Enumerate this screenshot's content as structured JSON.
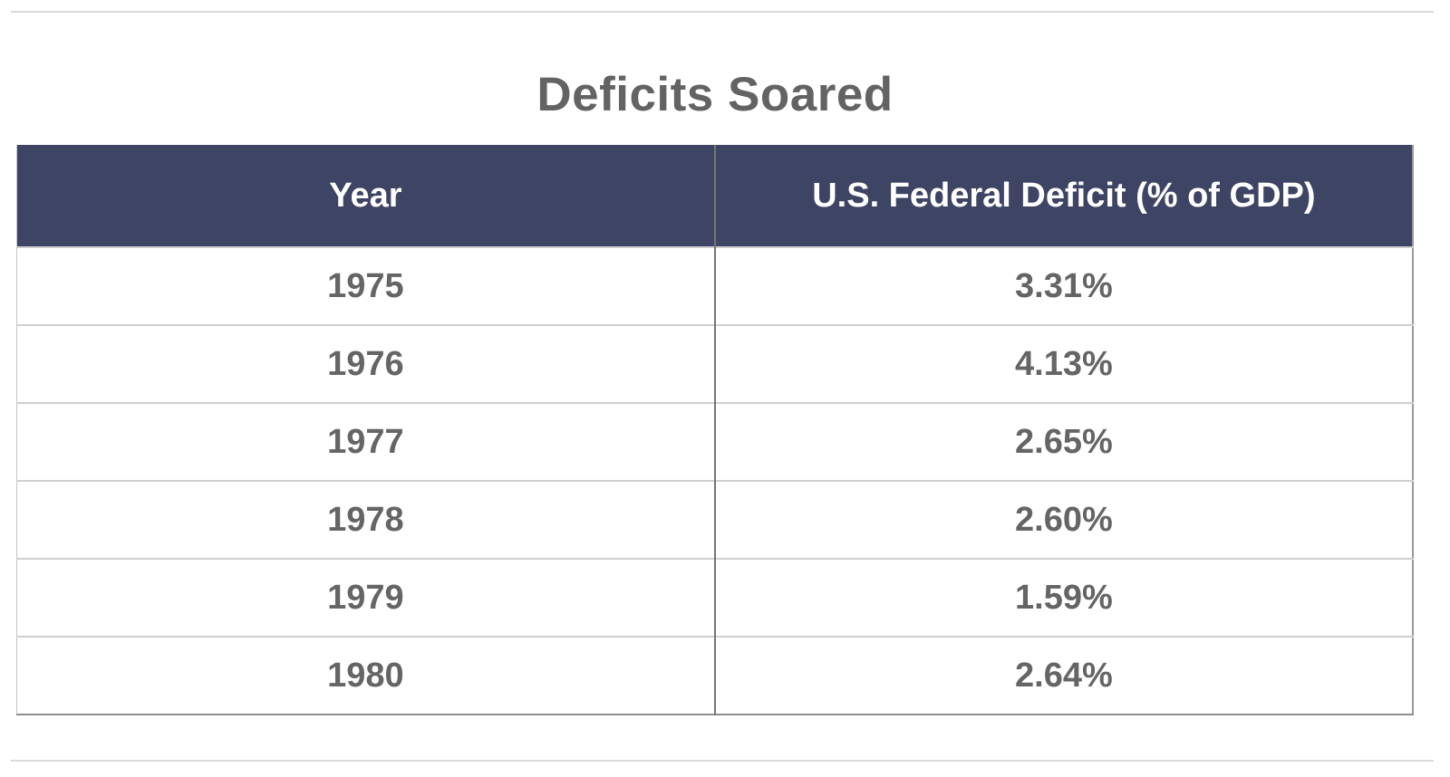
{
  "page": {
    "background": "#ffffff",
    "rule_color": "#dadada"
  },
  "title": "Deficits Soared",
  "table": {
    "header_bg": "#3e4464",
    "header_text_color": "#ffffff",
    "body_text_color": "#656565",
    "columns": [
      "Year",
      "U.S. Federal Deficit (% of GDP)"
    ],
    "rows": [
      [
        "1975",
        "3.31%"
      ],
      [
        "1976",
        "4.13%"
      ],
      [
        "1977",
        "2.65%"
      ],
      [
        "1978",
        "2.60%"
      ],
      [
        "1979",
        "1.59%"
      ],
      [
        "1980",
        "2.64%"
      ]
    ]
  },
  "chart_data": {
    "type": "table",
    "title": "Deficits Soared",
    "columns": [
      "Year",
      "U.S. Federal Deficit (% of GDP)"
    ],
    "categories": [
      "1975",
      "1976",
      "1977",
      "1978",
      "1979",
      "1980"
    ],
    "values": [
      3.31,
      4.13,
      2.65,
      2.6,
      1.59,
      2.64
    ],
    "unit": "% of GDP"
  }
}
